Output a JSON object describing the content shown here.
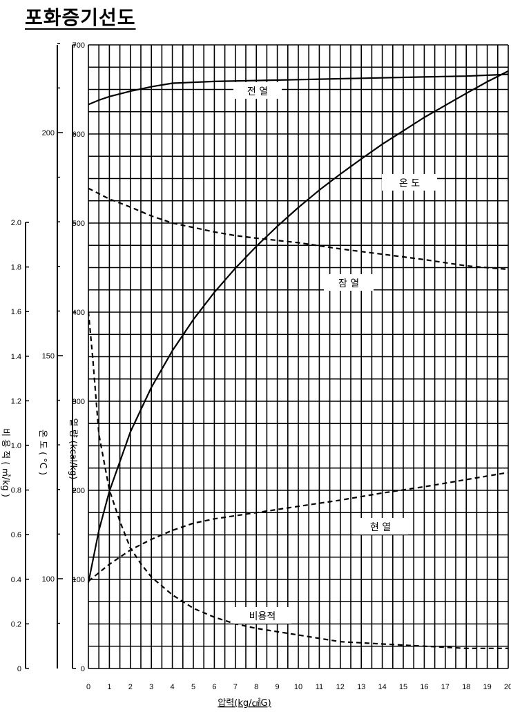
{
  "page": {
    "title": "포화증기선도"
  },
  "chart_data": {
    "type": "line",
    "title": "포화증기선도",
    "xlabel": "압력(kg/㎠G)",
    "xlim": [
      0,
      20
    ],
    "x_ticks": [
      "0",
      "1",
      "2",
      "3",
      "4",
      "5",
      "6",
      "7",
      "8",
      "9",
      "10",
      "11",
      "12",
      "13",
      "14",
      "15",
      "16",
      "17",
      "18",
      "19",
      "20"
    ],
    "grid": true,
    "axes": {
      "heat": {
        "label": "열 량 (kcal/kg)",
        "range": [
          0,
          700
        ],
        "ticks": [
          "0",
          "100",
          "200",
          "300",
          "400",
          "500",
          "600",
          "700"
        ]
      },
      "temperature": {
        "label": "온 도 ( °C )",
        "range": [
          90,
          240
        ],
        "ticks": [
          "100",
          "150",
          "200"
        ]
      },
      "specific_volume": {
        "label": "비 용 적 ( ㎥/kg )",
        "range": [
          0,
          2.0
        ],
        "ticks": [
          "0",
          "0.2",
          "0.4",
          "0.6",
          "0.8",
          "1.0",
          "1.2",
          "1.4",
          "1.6",
          "1.8",
          "2.0"
        ]
      }
    },
    "series": [
      {
        "name": "전 열",
        "axis": "heat",
        "style": "solid",
        "x": [
          0,
          0.5,
          1,
          2,
          3,
          4,
          5,
          6,
          8,
          10,
          12,
          14,
          16,
          18,
          20
        ],
        "y": [
          633,
          638,
          642,
          648,
          653,
          657,
          658,
          659,
          660,
          661,
          662,
          663,
          664,
          665,
          667
        ]
      },
      {
        "name": "온 도",
        "axis": "temperature",
        "style": "solid",
        "x": [
          0,
          0.5,
          1,
          2,
          3,
          4,
          5,
          6,
          7,
          8,
          9,
          10,
          11,
          12,
          13,
          14,
          15,
          16,
          17,
          18,
          19,
          20
        ],
        "y": [
          99.1,
          110.8,
          119.6,
          132.9,
          142.9,
          151.1,
          158.1,
          164.2,
          169.6,
          174.5,
          179.0,
          183.2,
          187.1,
          190.7,
          194.1,
          197.4,
          200.4,
          203.4,
          206.1,
          208.8,
          211.4,
          213.8
        ]
      },
      {
        "name": "잠 열",
        "axis": "heat",
        "style": "dashed",
        "x": [
          0,
          1,
          2,
          3,
          4,
          5,
          6,
          7,
          8,
          10,
          12,
          14,
          16,
          18,
          20
        ],
        "y": [
          539,
          527,
          518,
          508,
          500,
          495,
          490,
          486,
          483,
          478,
          471,
          465,
          459,
          452,
          448
        ]
      },
      {
        "name": "현 열",
        "axis": "heat",
        "style": "dashed",
        "x": [
          0,
          1,
          2,
          3,
          4,
          5,
          6,
          8,
          10,
          12,
          14,
          16,
          18,
          20
        ],
        "y": [
          98,
          117,
          133,
          145,
          155,
          163,
          168,
          175,
          182,
          189,
          197,
          204,
          212,
          220
        ]
      },
      {
        "name": "비용적",
        "axis": "specific_volume",
        "style": "dashed",
        "x": [
          0,
          0.2,
          0.5,
          1,
          1.5,
          2,
          2.5,
          3,
          3.5,
          4,
          5,
          6,
          7,
          8,
          10,
          12,
          14,
          16,
          18,
          20
        ],
        "y": [
          1.6,
          1.4,
          1.05,
          0.8,
          0.66,
          0.54,
          0.47,
          0.41,
          0.37,
          0.33,
          0.27,
          0.23,
          0.2,
          0.18,
          0.15,
          0.12,
          0.11,
          0.1,
          0.09,
          0.09
        ]
      }
    ],
    "curve_labels": [
      "전 열",
      "온 도",
      "잠 열",
      "현 열",
      "비용적"
    ]
  }
}
